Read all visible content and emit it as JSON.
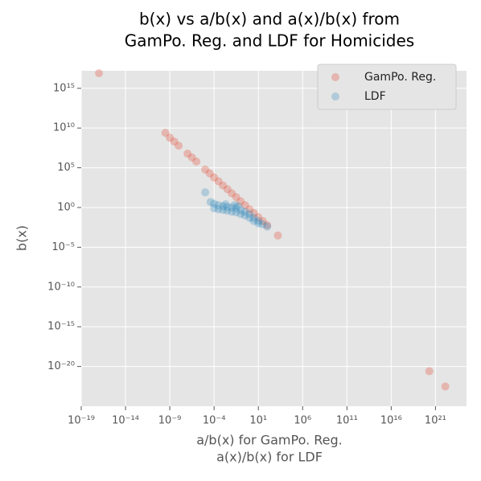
{
  "chart_data": {
    "type": "scatter",
    "title": [
      "b(x) vs a/b(x) and a(x)/b(x) from",
      "GamPo. Reg. and LDF for Homicides"
    ],
    "xlabel": [
      "a/b(x) for GamPo. Reg.",
      "a(x)/b(x) for LDF"
    ],
    "ylabel": "b(x)",
    "xscale": "log",
    "yscale": "log",
    "grid": true,
    "legend": "upper right",
    "xlim": [
      1e-19,
      3.2e+24
    ],
    "ylim": [
      1e-25,
      1.6e+17
    ],
    "xticks": [
      {
        "value": 1e-19,
        "label": "10⁻¹⁹"
      },
      {
        "value": 1e-14,
        "label": "10⁻¹⁴"
      },
      {
        "value": 1e-09,
        "label": "10⁻⁹"
      },
      {
        "value": 0.0001,
        "label": "10⁻⁴"
      },
      {
        "value": 10,
        "label": "10¹"
      },
      {
        "value": 1000000.0,
        "label": "10⁶"
      },
      {
        "value": 100000000000.0,
        "label": "10¹¹"
      },
      {
        "value": 1e+16,
        "label": "10¹⁶"
      },
      {
        "value": 1e+21,
        "label": "10²¹"
      }
    ],
    "yticks": [
      {
        "value": 1000000000000000.0,
        "label": "10¹⁵"
      },
      {
        "value": 10000000000.0,
        "label": "10¹⁰"
      },
      {
        "value": 100000.0,
        "label": "10⁵"
      },
      {
        "value": 1,
        "label": "10⁰"
      },
      {
        "value": 1e-05,
        "label": "10⁻⁵"
      },
      {
        "value": 1e-10,
        "label": "10⁻¹⁰"
      },
      {
        "value": 1e-15,
        "label": "10⁻¹⁵"
      },
      {
        "value": 1e-20,
        "label": "10⁻²⁰"
      }
    ],
    "series": [
      {
        "name": "GamPo. Reg.",
        "color": "#E24A33",
        "x": [
          1e-17,
          3.2e-10,
          1e-09,
          3.2e-09,
          1e-08,
          1e-07,
          3.2e-07,
          1e-06,
          1e-05,
          3.2e-05,
          0.0001,
          0.00032,
          0.001,
          0.0032,
          0.01,
          0.032,
          0.1,
          0.32,
          1,
          3.2,
          10,
          32,
          100,
          1600,
          2e+20,
          1.3e+22
        ],
        "values": [
          8e+16,
          2500000000.0,
          600000000.0,
          200000000.0,
          60000000.0,
          6000000.0,
          2000000.0,
          600000.0,
          60000.0,
          20000.0,
          6000.0,
          2000.0,
          600,
          200,
          60,
          20,
          6,
          2,
          0.6,
          0.2,
          0.06,
          0.02,
          0.006,
          0.0003,
          2.5e-21,
          3e-23
        ]
      },
      {
        "name": "LDF",
        "color": "#348ABD",
        "x": [
          1e-05,
          4e-05,
          0.0001,
          0.0003,
          0.001,
          0.003,
          0.01,
          0.03,
          0.1,
          0.3,
          1,
          3,
          10,
          30,
          100,
          0.0001,
          0.0003,
          0.001,
          0.003,
          0.01,
          0.03,
          0.1,
          0.3,
          1,
          3,
          10,
          0.002,
          0.02,
          0.05
        ],
        "values": [
          80,
          5,
          3,
          2,
          1.5,
          1.2,
          1,
          0.8,
          0.5,
          0.3,
          0.15,
          0.05,
          0.02,
          0.008,
          0.004,
          0.8,
          0.6,
          0.5,
          0.4,
          0.3,
          0.25,
          0.15,
          0.1,
          0.05,
          0.02,
          0.01,
          2.5,
          2,
          1.5
        ]
      }
    ]
  }
}
